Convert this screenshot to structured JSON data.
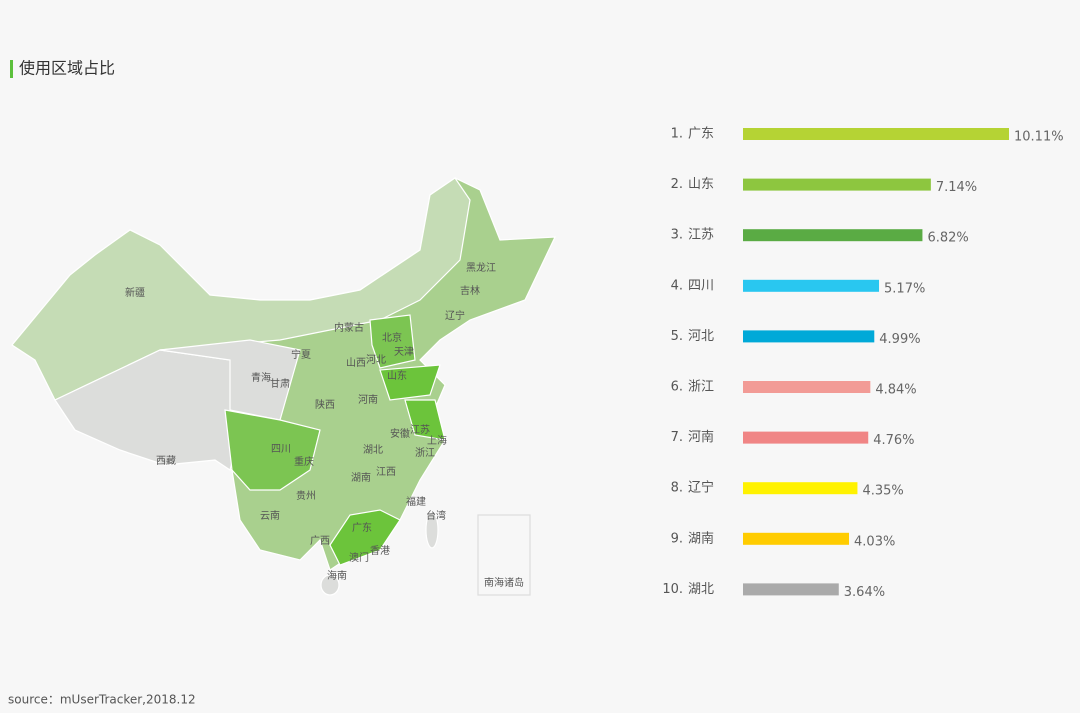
{
  "title": "使用区域占比",
  "source": "source：mUserTracker,2018.12",
  "map": {
    "labels": [
      "新疆",
      "西藏",
      "青海",
      "甘肃",
      "宁夏",
      "内蒙古",
      "黑龙江",
      "吉林",
      "辽宁",
      "北京",
      "天津",
      "河北",
      "山西",
      "山东",
      "陕西",
      "河南",
      "四川",
      "重庆",
      "湖北",
      "安徽",
      "江苏",
      "上海",
      "浙江",
      "湖南",
      "江西",
      "贵州",
      "云南",
      "广西",
      "广东",
      "福建",
      "台湾",
      "香港",
      "澳门",
      "海南",
      "南海诸岛"
    ]
  },
  "chart_data": {
    "type": "bar",
    "orientation": "horizontal",
    "ranks": [
      "1.",
      "2.",
      "3.",
      "4.",
      "5.",
      "6.",
      "7.",
      "8.",
      "9.",
      "10."
    ],
    "categories": [
      "广东",
      "山东",
      "江苏",
      "四川",
      "河北",
      "浙江",
      "河南",
      "辽宁",
      "湖南",
      "湖北"
    ],
    "values": [
      10.11,
      7.14,
      6.82,
      5.17,
      4.99,
      4.84,
      4.76,
      4.35,
      4.03,
      3.64
    ],
    "value_labels": [
      "10.11%",
      "7.14%",
      "6.82%",
      "5.17%",
      "4.99%",
      "4.84%",
      "4.76%",
      "4.35%",
      "4.03%",
      "3.64%"
    ],
    "colors": [
      "#b5d334",
      "#8dc63f",
      "#5aab44",
      "#29c7f0",
      "#00a9d8",
      "#f29b96",
      "#f08585",
      "#fff200",
      "#ffcc00",
      "#aaaaaa"
    ],
    "xlim": [
      0,
      10.11
    ]
  }
}
